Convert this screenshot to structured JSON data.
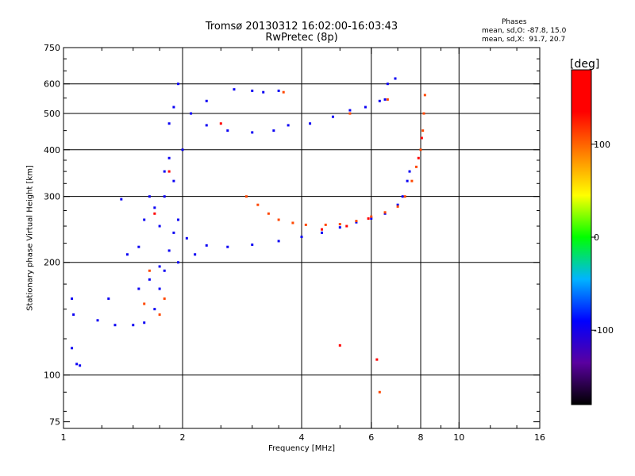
{
  "title": "Tromsø 20130312 16:02:00-16:03:43",
  "subtitle": "RwPretec (8p)",
  "stats": {
    "heading": "Phases",
    "line1": "mean, sd,O: -87.8, 15.0",
    "line2": "mean, sd,X:  91.7, 20.7"
  },
  "chart_data": {
    "type": "scatter",
    "xlabel": "Frequency [MHz]",
    "ylabel": "Stationary phase Virtual Height [km]",
    "x_scale": "log",
    "y_scale": "log",
    "xlim": [
      1,
      16
    ],
    "ylim": [
      72,
      750
    ],
    "x_ticks": [
      1,
      2,
      4,
      6,
      8,
      10,
      16
    ],
    "y_ticks": [
      75,
      100,
      200,
      300,
      400,
      500,
      600,
      750
    ],
    "x_gridlines": [
      2,
      4,
      6,
      8,
      10
    ],
    "y_gridlines": [
      100,
      200,
      300,
      400,
      500,
      600
    ],
    "grid": true,
    "colorbar": {
      "label": "[deg]",
      "range": [
        -180,
        180
      ],
      "ticks": [
        100,
        0,
        -100
      ],
      "colors": [
        "#000000",
        "#5a00a0",
        "#0000ff",
        "#00b4ff",
        "#00ff00",
        "#ffff00",
        "#ff8000",
        "#ff0000",
        "#ff0000"
      ]
    },
    "series": [
      {
        "phase": -95,
        "points": [
          [
            1.05,
            118
          ],
          [
            1.08,
            107
          ],
          [
            1.1,
            106
          ],
          [
            1.06,
            145
          ],
          [
            1.05,
            160
          ],
          [
            1.22,
            140
          ],
          [
            1.35,
            136
          ],
          [
            1.5,
            136
          ],
          [
            1.6,
            138
          ],
          [
            1.7,
            150
          ],
          [
            1.75,
            170
          ],
          [
            1.8,
            190
          ],
          [
            1.85,
            215
          ],
          [
            1.9,
            240
          ],
          [
            1.95,
            260
          ],
          [
            2.05,
            232
          ],
          [
            2.3,
            222
          ],
          [
            2.6,
            220
          ],
          [
            3.0,
            223
          ],
          [
            3.5,
            228
          ],
          [
            4.0,
            234
          ],
          [
            4.5,
            240
          ],
          [
            5.0,
            248
          ],
          [
            5.5,
            256
          ],
          [
            6.0,
            262
          ],
          [
            6.5,
            270
          ],
          [
            7.0,
            285
          ],
          [
            7.2,
            300
          ],
          [
            7.4,
            330
          ],
          [
            7.5,
            350
          ],
          [
            2.1,
            500
          ],
          [
            2.3,
            465
          ],
          [
            2.6,
            450
          ],
          [
            3.0,
            445
          ],
          [
            3.4,
            450
          ],
          [
            3.7,
            465
          ],
          [
            2.3,
            540
          ],
          [
            2.7,
            580
          ],
          [
            3.0,
            575
          ],
          [
            3.2,
            570
          ],
          [
            3.5,
            575
          ],
          [
            4.2,
            470
          ],
          [
            4.8,
            490
          ],
          [
            5.3,
            510
          ],
          [
            5.8,
            520
          ],
          [
            6.3,
            540
          ],
          [
            6.5,
            545
          ],
          [
            6.6,
            600
          ],
          [
            6.9,
            620
          ],
          [
            1.65,
            300
          ],
          [
            1.7,
            280
          ],
          [
            1.8,
            350
          ],
          [
            1.85,
            380
          ],
          [
            1.75,
            250
          ],
          [
            1.6,
            260
          ],
          [
            1.55,
            220
          ],
          [
            1.45,
            210
          ],
          [
            1.4,
            295
          ],
          [
            1.3,
            160
          ],
          [
            1.85,
            470
          ],
          [
            1.9,
            520
          ],
          [
            1.95,
            600
          ],
          [
            2.0,
            400
          ],
          [
            1.9,
            330
          ],
          [
            1.8,
            300
          ],
          [
            2.15,
            210
          ],
          [
            1.65,
            180
          ],
          [
            1.75,
            195
          ],
          [
            1.55,
            170
          ],
          [
            1.95,
            200
          ]
        ]
      },
      {
        "phase": 110,
        "points": [
          [
            2.9,
            300
          ],
          [
            3.1,
            285
          ],
          [
            3.3,
            270
          ],
          [
            3.5,
            260
          ],
          [
            3.8,
            255
          ],
          [
            4.1,
            252
          ],
          [
            4.6,
            252
          ],
          [
            5.0,
            253
          ],
          [
            5.5,
            258
          ],
          [
            6.0,
            265
          ],
          [
            6.5,
            272
          ],
          [
            7.0,
            282
          ],
          [
            7.3,
            300
          ],
          [
            7.6,
            330
          ],
          [
            7.8,
            360
          ],
          [
            8.0,
            400
          ],
          [
            8.1,
            450
          ],
          [
            8.15,
            500
          ],
          [
            8.2,
            560
          ],
          [
            3.6,
            570
          ],
          [
            5.3,
            500
          ],
          [
            6.6,
            545
          ],
          [
            6.3,
            90
          ],
          [
            1.75,
            145
          ],
          [
            1.6,
            155
          ],
          [
            1.8,
            160
          ],
          [
            1.65,
            190
          ]
        ]
      },
      {
        "phase": 150,
        "points": [
          [
            4.5,
            245
          ],
          [
            5.2,
            250
          ],
          [
            5.9,
            262
          ],
          [
            7.9,
            380
          ],
          [
            8.05,
            430
          ],
          [
            2.5,
            470
          ],
          [
            5.0,
            120
          ],
          [
            6.2,
            110
          ],
          [
            1.85,
            350
          ],
          [
            1.7,
            270
          ]
        ]
      }
    ]
  }
}
